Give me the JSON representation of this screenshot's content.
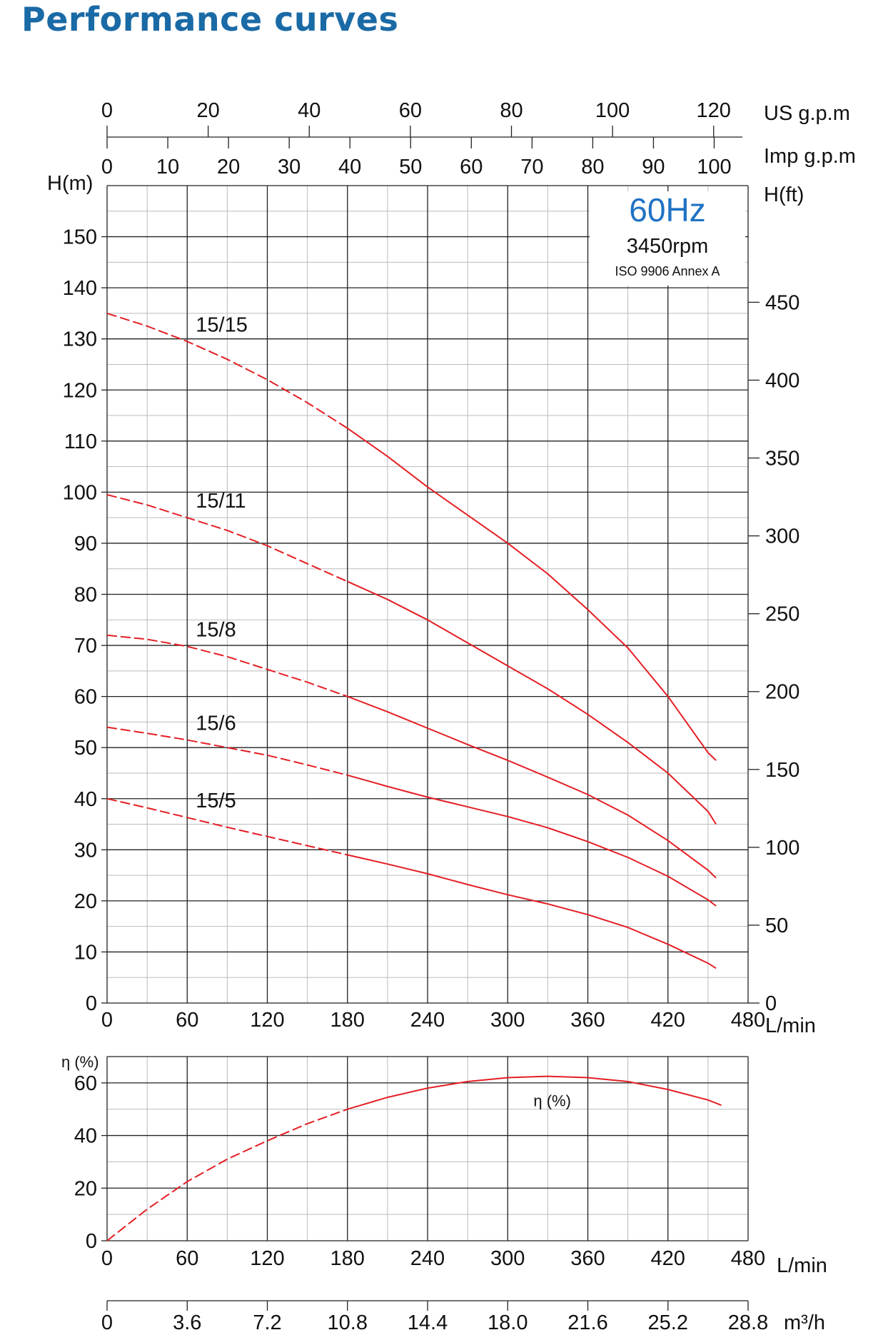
{
  "page": {
    "title": "Performance curves"
  },
  "colors": {
    "title": "#1a6aa6",
    "curve": "#e41f25",
    "freq": "#1f72c4",
    "grid_major": "#222222",
    "grid_minor": "#bbbbbb"
  },
  "chart_data": [
    {
      "type": "line",
      "name": "head",
      "title": "",
      "info_box": {
        "freq": "60Hz",
        "rpm": "3450rpm",
        "standard": "ISO 9906 Annex A"
      },
      "x_unit_primary": "L/min",
      "x_primary": {
        "range": [
          0,
          480
        ],
        "ticks": [
          0,
          60,
          120,
          180,
          240,
          300,
          360,
          420,
          480
        ]
      },
      "x_top_axes": [
        {
          "label": "US g.p.m",
          "lmin_per_unit": 3.785,
          "ticks": [
            0,
            20,
            40,
            60,
            80,
            100,
            120
          ]
        },
        {
          "label": "Imp g.p.m",
          "lmin_per_unit": 4.546,
          "ticks": [
            0,
            10,
            20,
            30,
            40,
            50,
            60,
            70,
            80,
            90,
            100
          ]
        }
      ],
      "y_left": {
        "label": "H(m)",
        "range": [
          0,
          160
        ],
        "ticks": [
          0,
          10,
          20,
          30,
          40,
          50,
          60,
          70,
          80,
          90,
          100,
          110,
          120,
          130,
          140,
          150
        ]
      },
      "y_right": {
        "label": "H(ft)",
        "ft_per_m": 3.2808,
        "ticks": [
          0,
          50,
          100,
          150,
          200,
          250,
          300,
          350,
          400,
          450
        ]
      },
      "grid": true,
      "dashed_until": 180,
      "series": [
        {
          "name": "15/15",
          "x": [
            0,
            30,
            60,
            90,
            120,
            150,
            180,
            210,
            240,
            270,
            300,
            330,
            360,
            390,
            420,
            450,
            456
          ],
          "y": [
            135,
            132.5,
            129.5,
            126,
            122,
            117.5,
            112.5,
            107,
            101,
            95.5,
            90,
            84,
            77,
            69.5,
            60,
            49,
            47.5
          ]
        },
        {
          "name": "15/11",
          "x": [
            0,
            30,
            60,
            90,
            120,
            150,
            180,
            210,
            240,
            270,
            300,
            330,
            360,
            390,
            420,
            450,
            456
          ],
          "y": [
            99.5,
            97.5,
            95,
            92.5,
            89.5,
            86,
            82.5,
            79,
            75,
            70.5,
            66,
            61.5,
            56.5,
            51,
            45,
            37.5,
            35
          ]
        },
        {
          "name": "15/8",
          "x": [
            0,
            30,
            60,
            90,
            120,
            150,
            180,
            210,
            240,
            270,
            300,
            330,
            360,
            390,
            420,
            450,
            456
          ],
          "y": [
            72,
            71.2,
            69.8,
            67.8,
            65.3,
            62.8,
            60,
            57,
            53.8,
            50.6,
            47.5,
            44.2,
            40.8,
            36.8,
            31.8,
            26,
            24.5
          ]
        },
        {
          "name": "15/6",
          "x": [
            0,
            30,
            60,
            90,
            120,
            150,
            180,
            210,
            240,
            270,
            300,
            330,
            360,
            390,
            420,
            450,
            456
          ],
          "y": [
            54,
            52.8,
            51.5,
            50,
            48.5,
            46.6,
            44.6,
            42.4,
            40.3,
            38.4,
            36.5,
            34.3,
            31.6,
            28.5,
            24.8,
            20.2,
            19
          ]
        },
        {
          "name": "15/5",
          "x": [
            0,
            30,
            60,
            90,
            120,
            150,
            180,
            210,
            240,
            270,
            300,
            330,
            360,
            390,
            420,
            450,
            456
          ],
          "y": [
            40,
            38.2,
            36.3,
            34.4,
            32.6,
            30.8,
            29,
            27.2,
            25.3,
            23.2,
            21.2,
            19.4,
            17.3,
            14.8,
            11.5,
            7.8,
            6.8
          ]
        }
      ]
    },
    {
      "type": "line",
      "name": "efficiency",
      "title": "",
      "y_label": "η (%)",
      "curve_label": "η (%)",
      "x_unit_primary": "L/min",
      "x_primary": {
        "range": [
          0,
          480
        ],
        "ticks": [
          0,
          60,
          120,
          180,
          240,
          300,
          360,
          420,
          480
        ]
      },
      "x_bottom_axis": {
        "label": "m³/h",
        "ticks": [
          "0",
          "3.6",
          "7.2",
          "10.8",
          "14.4",
          "18.0",
          "21.6",
          "25.2",
          "28.8"
        ]
      },
      "y": {
        "range": [
          0,
          70
        ],
        "ticks": [
          0,
          20,
          40,
          60
        ]
      },
      "grid": true,
      "dashed_until": 180,
      "series": [
        {
          "name": "η (%)",
          "x": [
            0,
            30,
            60,
            90,
            120,
            150,
            180,
            210,
            240,
            270,
            300,
            330,
            360,
            390,
            420,
            450,
            460
          ],
          "y": [
            0,
            12,
            22.5,
            31,
            38,
            44.5,
            50,
            54.5,
            58,
            60.5,
            62,
            62.5,
            62,
            60.5,
            57.5,
            53.5,
            51.5
          ]
        }
      ]
    }
  ]
}
